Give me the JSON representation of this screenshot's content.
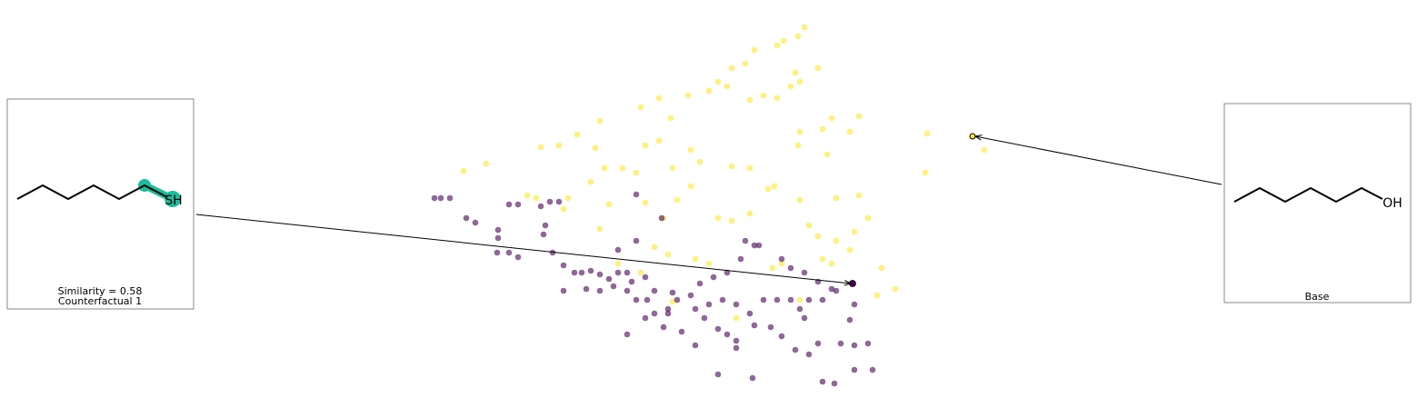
{
  "chart_data": {
    "type": "scatter",
    "xlim": [
      440,
      1100
    ],
    "ylim": [
      430,
      20
    ],
    "series": [
      {
        "color": "#fde725",
        "x": [
          885,
          878,
          862,
          855,
          830,
          820,
          805,
          790,
          780,
          800,
          875,
          900,
          870,
          880,
          840,
          825,
          855,
          757,
          725,
          705,
          738,
          660,
          635,
          655,
          615,
          595,
          710,
          725,
          760,
          770,
          740,
          700,
          665,
          685,
          805,
          825,
          880,
          905,
          915,
          945,
          935,
          910,
          878,
          1020,
          1018,
          1083,
          510,
          535,
          580,
          590,
          620,
          625,
          650,
          670,
          710,
          745,
          730,
          760,
          790,
          805,
          825,
          845,
          852,
          880,
          920,
          945,
          955,
          890,
          940,
          935,
          905,
          915,
          860,
          850,
          780,
          765,
          735,
          720,
          705,
          660,
          680,
          970,
          985,
          965,
          920,
          900,
          810,
          740,
          880
        ],
        "values": [
          30,
          40,
          45,
          50,
          55,
          70,
          75,
          90,
          100,
          95,
          80,
          75,
          95,
          90,
          105,
          110,
          108,
          105,
          108,
          118,
          130,
          133,
          148,
          163,
          160,
          162,
          160,
          155,
          165,
          178,
          185,
          190,
          185,
          185,
          183,
          185,
          145,
          142,
          130,
          128,
          145,
          170,
          160,
          147,
          190,
          165,
          188,
          180,
          215,
          218,
          230,
          218,
          200,
          225,
          223,
          220,
          240,
          205,
          240,
          243,
          235,
          208,
          205,
          220,
          218,
          215,
          240,
          248,
          255,
          275,
          285,
          290,
          290,
          295,
          290,
          285,
          280,
          272,
          300,
          252,
          290,
          295,
          318,
          325,
          265,
          260,
          350,
          332,
          330
        ]
      },
      {
        "color": "#440154",
        "x": [
          478,
          485,
          495,
          513,
          523,
          548,
          548,
          560,
          570,
          595,
          605,
          615,
          600,
          598,
          547,
          560,
          570,
          608,
          620,
          632,
          640,
          650,
          660,
          670,
          680,
          700,
          728,
          700,
          680,
          690,
          695,
          710,
          720,
          740,
          760,
          770,
          785,
          800,
          815,
          830,
          820,
          835,
          860,
          870,
          885,
          900,
          915,
          940,
          920,
          905,
          890,
          880,
          870,
          855,
          840,
          825,
          810,
          795,
          780,
          765,
          745,
          735,
          720,
          712,
          700,
          690,
          675,
          660,
          645,
          620,
          690,
          710,
          730,
          750,
          775,
          790,
          800,
          810,
          830,
          848,
          860,
          875,
          890,
          900,
          925,
          940,
          955,
          765,
          810,
          790,
          828,
          905,
          918,
          940,
          960,
          735,
          885,
          935
        ],
        "values": [
          218,
          218,
          218,
          240,
          245,
          253,
          262,
          225,
          225,
          227,
          222,
          222,
          248,
          258,
          278,
          278,
          283,
          278,
          292,
          300,
          300,
          298,
          302,
          307,
          300,
          214,
          240,
          265,
          275,
          300,
          310,
          305,
          320,
          322,
          325,
          312,
          305,
          300,
          285,
          270,
          265,
          270,
          285,
          295,
          300,
          310,
          318,
          335,
          320,
          330,
          330,
          340,
          330,
          330,
          330,
          345,
          335,
          330,
          335,
          340,
          330,
          345,
          345,
          330,
          330,
          320,
          315,
          320,
          318,
          320,
          368,
          350,
          360,
          365,
          350,
          362,
          368,
          375,
          358,
          360,
          370,
          385,
          390,
          378,
          378,
          380,
          378,
          380,
          383,
          412,
          416,
          420,
          422,
          407,
          407,
          340,
          350,
          352
        ]
      }
    ],
    "counterfactual": {
      "x": 938,
      "y": 312,
      "labels": [
        "Similarity = 0.58",
        "Counterfactual 1"
      ],
      "atom": "SH"
    },
    "base": {
      "x": 1070,
      "y": 150,
      "label": "Base",
      "atom": "OH"
    }
  }
}
